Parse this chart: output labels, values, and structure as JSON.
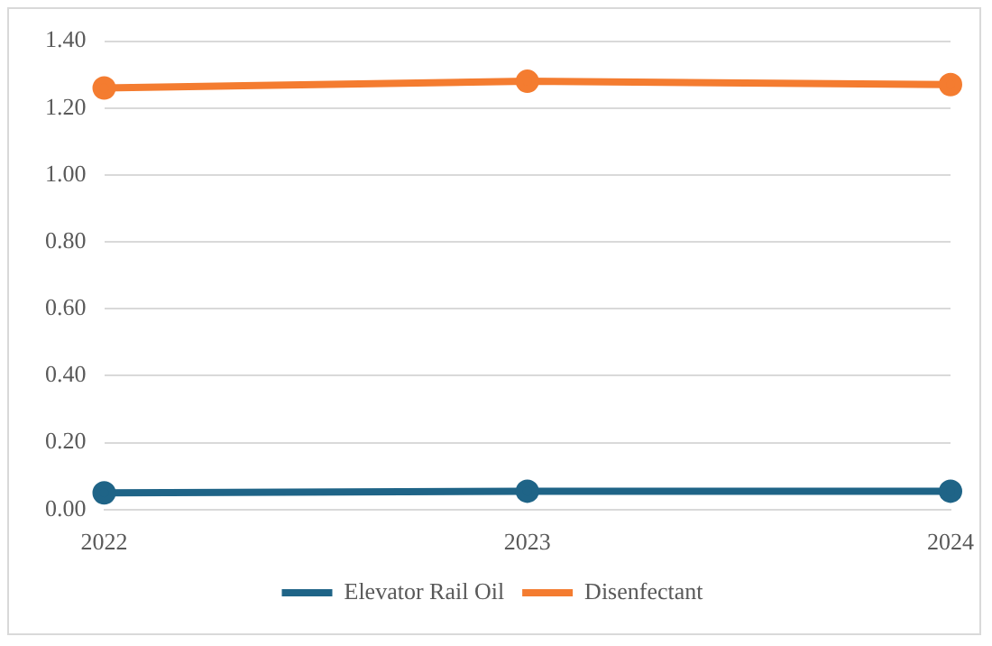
{
  "chart_data": {
    "type": "line",
    "categories": [
      "2022",
      "2023",
      "2024"
    ],
    "series": [
      {
        "name": "Elevator Rail Oil",
        "color": "#1f6487",
        "values": [
          0.05,
          0.055,
          0.055
        ]
      },
      {
        "name": "Disenfectant",
        "color": "#f47c30",
        "values": [
          1.26,
          1.28,
          1.27
        ]
      }
    ],
    "ylim": [
      0,
      1.4
    ],
    "yticks": [
      {
        "value": 0,
        "label": "0.00"
      },
      {
        "value": 0.2,
        "label": "0.20"
      },
      {
        "value": 0.4,
        "label": "0.40"
      },
      {
        "value": 0.6,
        "label": "0.60"
      },
      {
        "value": 0.8,
        "label": "0.80"
      },
      {
        "value": 1,
        "label": "1.00"
      },
      {
        "value": 1.2,
        "label": "1.20"
      },
      {
        "value": 1.4,
        "label": "1.40"
      }
    ],
    "grid": "y",
    "legend": "bottom",
    "marker": "circle",
    "line_style": "solid"
  }
}
